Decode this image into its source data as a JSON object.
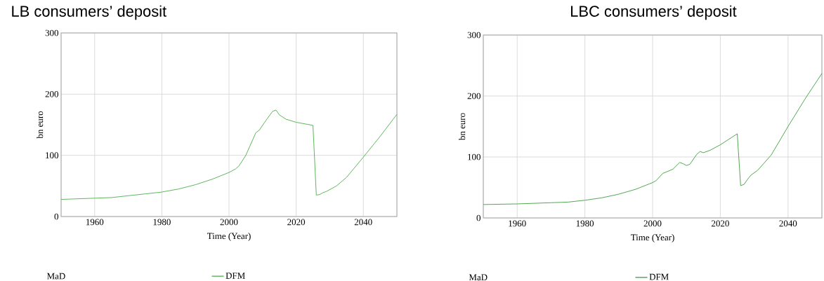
{
  "chart_data": [
    {
      "type": "line",
      "title": "LB consumers’ deposit",
      "xlabel": "Time (Year)",
      "ylabel": "bn euro",
      "x": [
        1950,
        1955,
        1960,
        1965,
        1970,
        1975,
        1980,
        1985,
        1990,
        1995,
        2000,
        2002,
        2003,
        2005,
        2008,
        2009,
        2011,
        2013,
        2014,
        2015,
        2017,
        2020,
        2025,
        2026,
        2027,
        2028,
        2029,
        2032,
        2035,
        2040,
        2045,
        2050
      ],
      "series": [
        {
          "name": "DFM",
          "color": "#4cae4c",
          "values": [
            28,
            29,
            30,
            31,
            34,
            37,
            40,
            45,
            52,
            61,
            72,
            78,
            83,
            100,
            137,
            141,
            157,
            172,
            174,
            166,
            159,
            154,
            149,
            35,
            36,
            39,
            41,
            50,
            64,
            97,
            131,
            167
          ]
        }
      ],
      "xlim": [
        1950,
        2050
      ],
      "ylim": [
        0,
        300
      ],
      "xticks": [
        1960,
        1980,
        2000,
        2020,
        2040
      ],
      "yticks": [
        0,
        100,
        200,
        300
      ],
      "grid": true,
      "legend": "bottom",
      "annotations": [
        "MaD"
      ]
    },
    {
      "type": "line",
      "title": "LBC consumers’ deposit",
      "xlabel": "Time (Year)",
      "ylabel": "bn euro",
      "x": [
        1950,
        1960,
        1970,
        1975,
        1980,
        1985,
        1990,
        1995,
        2000,
        2001,
        2003,
        2006,
        2008,
        2009,
        2010,
        2011,
        2013,
        2014,
        2015,
        2017,
        2020,
        2025,
        2026,
        2027,
        2028,
        2029,
        2031,
        2035,
        2040,
        2045,
        2050
      ],
      "series": [
        {
          "name": "DFM",
          "color": "#3d9e3d",
          "values": [
            22,
            23,
            25,
            26,
            29,
            33,
            39,
            47,
            58,
            61,
            73,
            80,
            91,
            89,
            86,
            88,
            104,
            109,
            107,
            111,
            120,
            138,
            53,
            55,
            63,
            70,
            78,
            103,
            150,
            195,
            237
          ]
        }
      ],
      "xlim": [
        1950,
        2050
      ],
      "ylim": [
        0,
        300
      ],
      "xticks": [
        1960,
        1980,
        2000,
        2020,
        2040
      ],
      "yticks": [
        0,
        100,
        200,
        300
      ],
      "grid": true,
      "legend": "bottom",
      "annotations": [
        "MaD"
      ]
    }
  ]
}
